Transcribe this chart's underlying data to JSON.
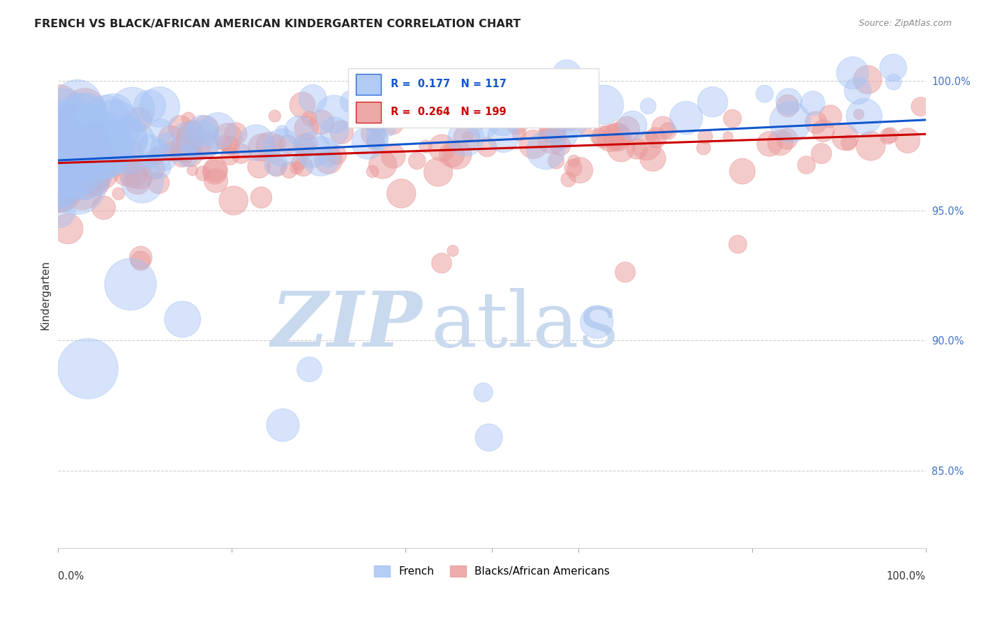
{
  "title": "FRENCH VS BLACK/AFRICAN AMERICAN KINDERGARTEN CORRELATION CHART",
  "source": "Source: ZipAtlas.com",
  "ylabel": "Kindergarten",
  "french_R": 0.177,
  "french_N": 117,
  "black_R": 0.264,
  "black_N": 199,
  "french_color": "#a4c2f4",
  "french_line_color": "#1155cc",
  "black_color": "#ea9999",
  "black_line_color": "#cc0000",
  "watermark_zip": "ZIP",
  "watermark_atlas": "atlas",
  "watermark_color_zip": "#c9d9ee",
  "watermark_color_atlas": "#c9d9ee",
  "ymin": 0.82,
  "ymax": 1.015,
  "xmin": 0.0,
  "xmax": 1.0,
  "yticks": [
    0.85,
    0.9,
    0.95,
    1.0
  ],
  "ytick_labels": [
    "85.0%",
    "90.0%",
    "95.0%",
    "100.0%"
  ],
  "axis_label_color": "#4472c4",
  "background_color": "#ffffff",
  "legend_french": "French",
  "legend_black": "Blacks/African Americans",
  "seed": 42
}
